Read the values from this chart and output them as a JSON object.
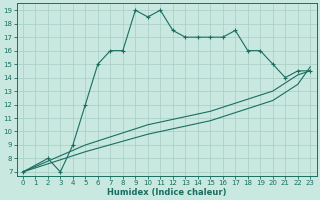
{
  "xlabel": "Humidex (Indice chaleur)",
  "xlim": [
    -0.5,
    23.5
  ],
  "ylim": [
    6.7,
    19.5
  ],
  "xticks": [
    0,
    1,
    2,
    3,
    4,
    5,
    6,
    7,
    8,
    9,
    10,
    11,
    12,
    13,
    14,
    15,
    16,
    17,
    18,
    19,
    20,
    21,
    22,
    23
  ],
  "yticks": [
    7,
    8,
    9,
    10,
    11,
    12,
    13,
    14,
    15,
    16,
    17,
    18,
    19
  ],
  "bg_color": "#c8e8e0",
  "grid_color": "#a8ccc4",
  "line_color": "#1a6e60",
  "line1_x": [
    0,
    2,
    3,
    4,
    5,
    6,
    7,
    8,
    9,
    10,
    11,
    12,
    13,
    14,
    15,
    16,
    17,
    18,
    19,
    20,
    21,
    22,
    23
  ],
  "line1_y": [
    7,
    8,
    7,
    9,
    12,
    15,
    16,
    16,
    19,
    18.5,
    19,
    17.5,
    17,
    17,
    17,
    17,
    17.5,
    16,
    16,
    15,
    14,
    14.5,
    14.5
  ],
  "line2_x": [
    0,
    5,
    10,
    15,
    20,
    22,
    23
  ],
  "line2_y": [
    7,
    9.0,
    10.5,
    11.5,
    13.0,
    14.2,
    14.5
  ],
  "line3_x": [
    0,
    5,
    10,
    15,
    20,
    22,
    23
  ],
  "line3_y": [
    7,
    8.5,
    9.8,
    10.8,
    12.3,
    13.5,
    14.8
  ],
  "figsize": [
    3.2,
    2.0
  ],
  "dpi": 100
}
